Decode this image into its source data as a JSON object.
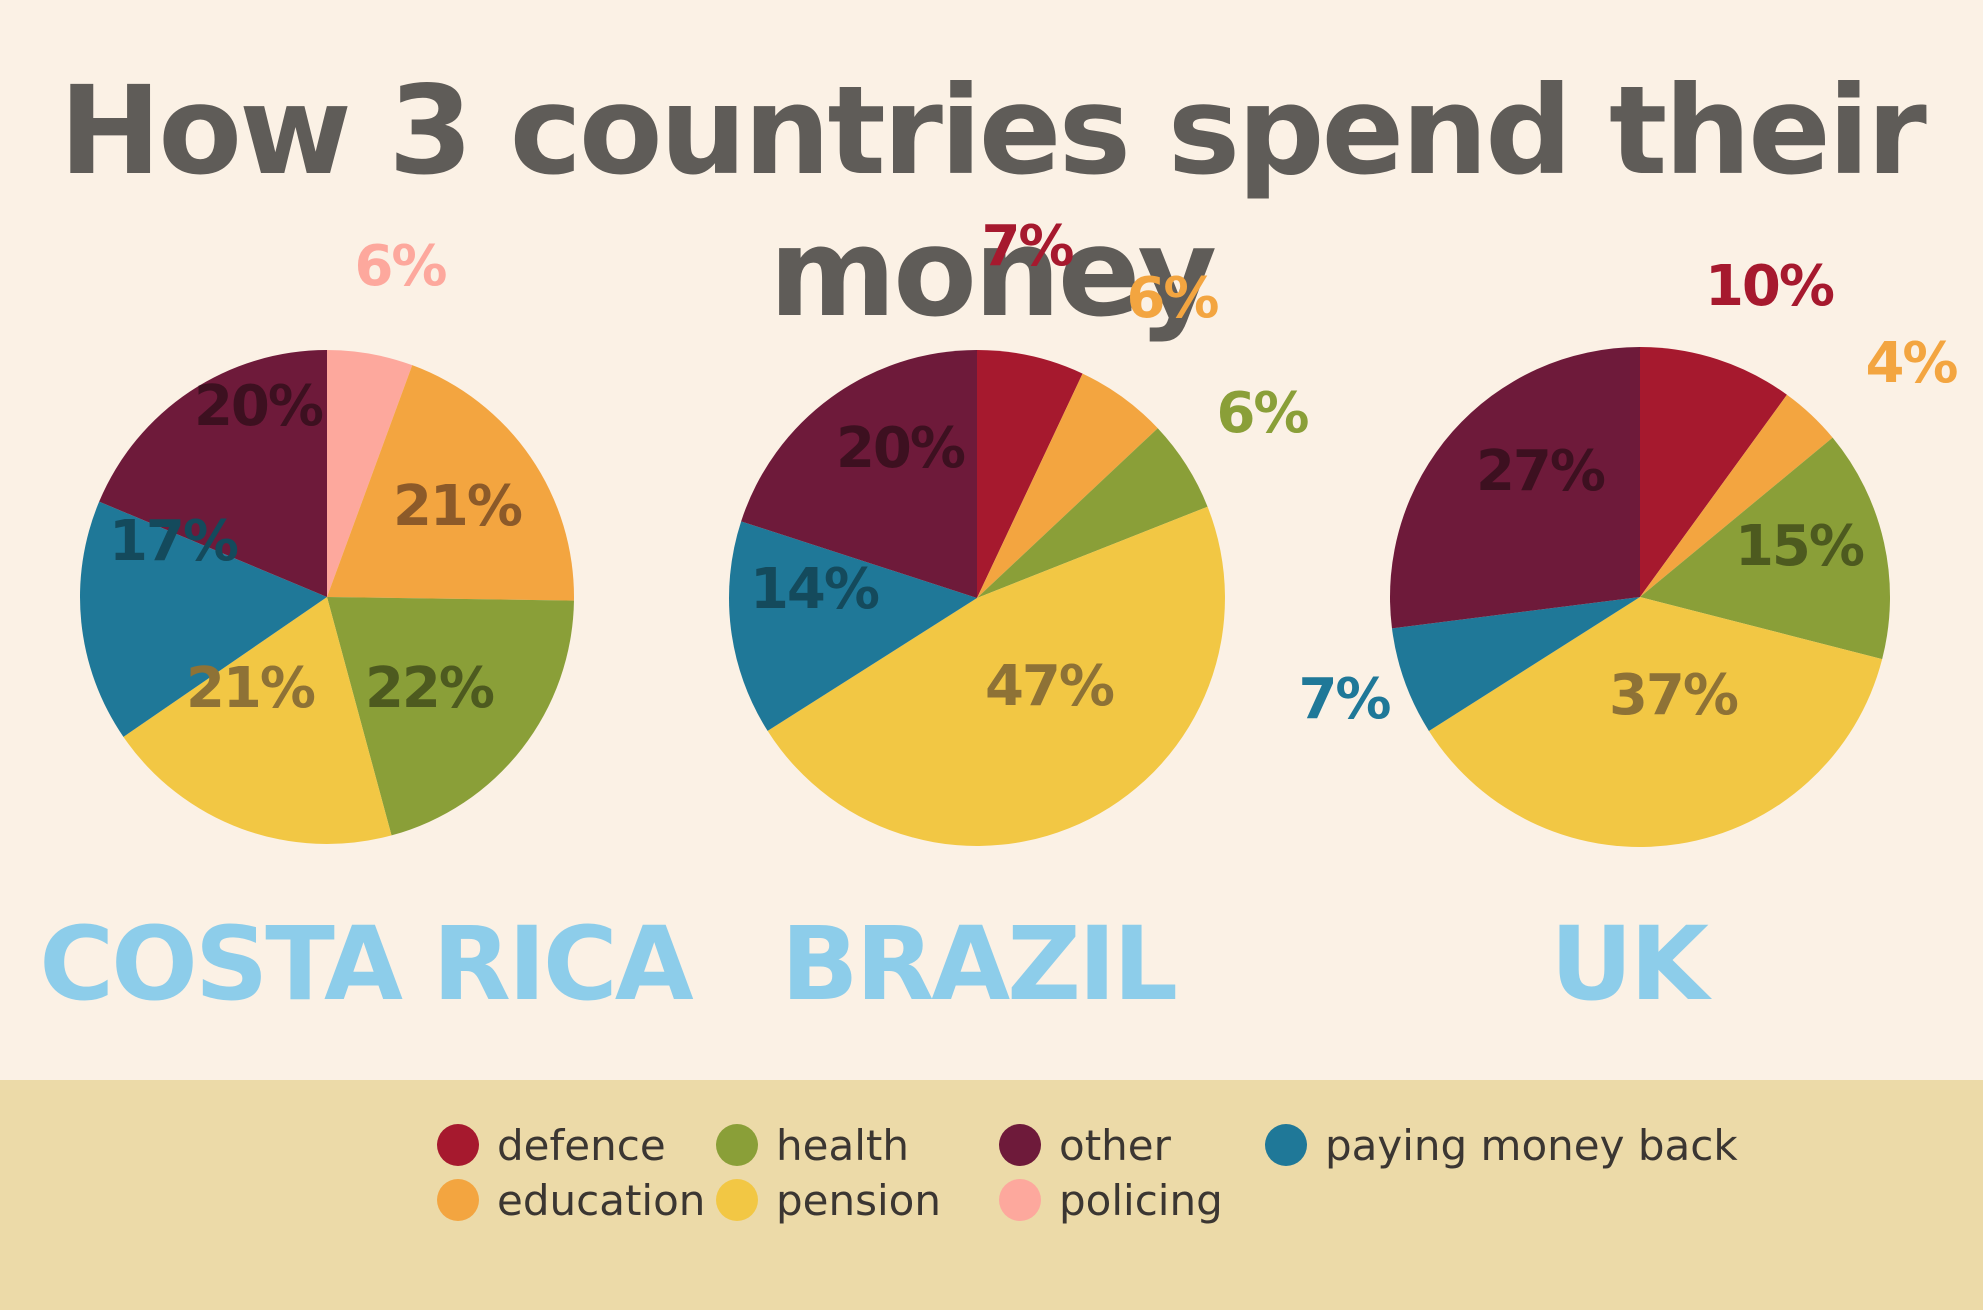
{
  "title": "How 3 countries spend their money",
  "chart_data": [
    {
      "type": "pie",
      "title": "COSTA RICA",
      "slices": [
        {
          "category": "policing",
          "value": 6,
          "label": "6%"
        },
        {
          "category": "education",
          "value": 21,
          "label": "21%"
        },
        {
          "category": "health",
          "value": 22,
          "label": "22%"
        },
        {
          "category": "pension",
          "value": 21,
          "label": "21%"
        },
        {
          "category": "paying money back",
          "value": 17,
          "label": "17%"
        },
        {
          "category": "other",
          "value": 20,
          "label": "20%"
        }
      ]
    },
    {
      "type": "pie",
      "title": "BRAZIL",
      "slices": [
        {
          "category": "defence",
          "value": 7,
          "label": "7%"
        },
        {
          "category": "education",
          "value": 6,
          "label": "6%"
        },
        {
          "category": "health",
          "value": 6,
          "label": "6%"
        },
        {
          "category": "pension",
          "value": 47,
          "label": "47%"
        },
        {
          "category": "paying money back",
          "value": 14,
          "label": "14%"
        },
        {
          "category": "other",
          "value": 20,
          "label": "20%"
        }
      ]
    },
    {
      "type": "pie",
      "title": "UK",
      "slices": [
        {
          "category": "defence",
          "value": 10,
          "label": "10%"
        },
        {
          "category": "education",
          "value": 4,
          "label": "4%"
        },
        {
          "category": "health",
          "value": 15,
          "label": "15%"
        },
        {
          "category": "pension",
          "value": 37,
          "label": "37%"
        },
        {
          "category": "paying money back",
          "value": 7,
          "label": "7%"
        },
        {
          "category": "other",
          "value": 27,
          "label": "27%"
        }
      ]
    }
  ],
  "legend": [
    {
      "label": "defence",
      "color": "#a6192e"
    },
    {
      "label": "education",
      "color": "#f3a540"
    },
    {
      "label": "health",
      "color": "#8a9f38"
    },
    {
      "label": "pension",
      "color": "#f2c744"
    },
    {
      "label": "other",
      "color": "#6e1a3a"
    },
    {
      "label": "policing",
      "color": "#fda89d"
    },
    {
      "label": "paying money back",
      "color": "#1f7898"
    }
  ],
  "label_colors": {
    "defence": "#a6192e",
    "education": "#f3a540",
    "health": "#8a9f38",
    "pension": "#8e7236",
    "other": "#3d1020",
    "policing": "#fda89d",
    "paying money back": "#1f7898",
    "inner_education": "#8c5a29",
    "inner_health": "#4d5a1f",
    "inner_pension": "#8e7236",
    "inner_money_back": "#144a5c",
    "inner_other": "#3d1020"
  },
  "background": "#fbf1e5",
  "country_color": "#8dcdea"
}
